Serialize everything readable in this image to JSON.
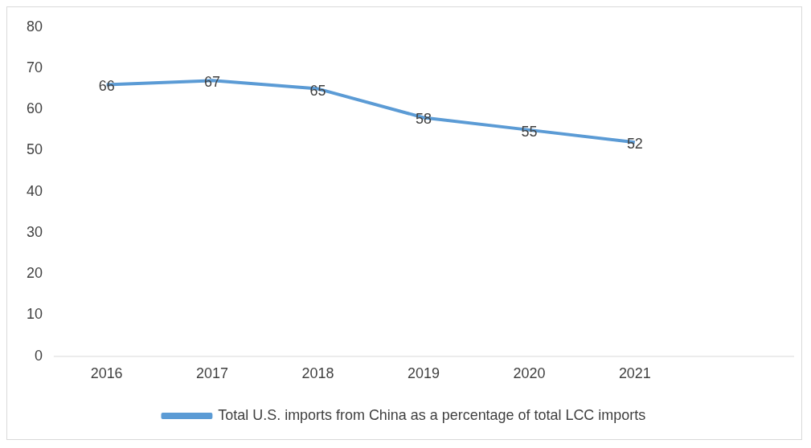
{
  "chart_data": {
    "type": "line",
    "categories": [
      "2016",
      "2017",
      "2018",
      "2019",
      "2020",
      "2021",
      null
    ],
    "series": [
      {
        "name": "Total U.S. imports from China as a percentage of total LCC imports",
        "color": "#5b9bd5",
        "values": [
          66,
          67,
          65,
          58,
          55,
          52,
          null
        ]
      }
    ],
    "ylim": [
      0,
      80
    ],
    "yticks": [
      0,
      10,
      20,
      30,
      40,
      50,
      60,
      70,
      80
    ],
    "grid": false,
    "data_labels": true,
    "legend": "bottom",
    "marker": "none"
  }
}
